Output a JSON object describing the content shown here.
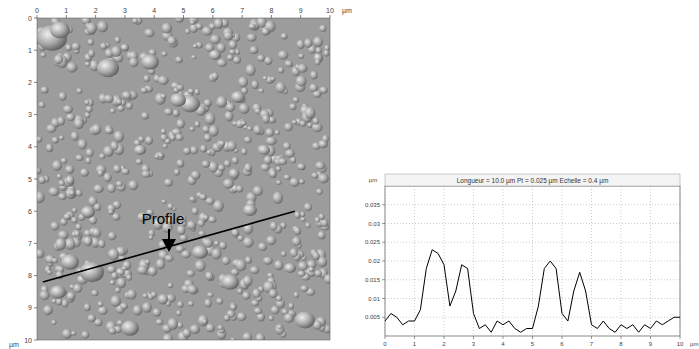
{
  "chart_data": [
    {
      "type": "image",
      "x_label": "µm",
      "y_label": "µm",
      "xlim": [
        0,
        10
      ],
      "ylim": [
        0,
        10
      ],
      "xticks": [
        0,
        1,
        2,
        3,
        4,
        5,
        6,
        7,
        8,
        9,
        10
      ],
      "yticks": [
        0,
        1,
        2,
        3,
        4,
        5,
        6,
        7,
        8,
        9,
        10
      ],
      "profile_line": {
        "x": [
          0.2,
          8.8
        ],
        "y": [
          8.2,
          6.0
        ]
      },
      "annotations": [
        {
          "text": "Profile",
          "x": 4.3,
          "y": 6.4
        }
      ]
    },
    {
      "type": "line",
      "title": "Longueur = 10.0 µm  Pt = 0.025 µm  Echelle = 0.4 µm",
      "y_label": "µm",
      "x_label": "µm",
      "xlim": [
        0,
        10
      ],
      "ylim": [
        0,
        0.04
      ],
      "xticks": [
        0,
        1,
        2,
        3,
        4,
        5,
        6,
        7,
        8,
        9,
        10
      ],
      "yticks": [
        0.005,
        0.01,
        0.015,
        0.02,
        0.025,
        0.03,
        0.035
      ],
      "grid": true,
      "color": "#000000",
      "x": [
        0,
        0.2,
        0.4,
        0.6,
        0.8,
        1.0,
        1.2,
        1.4,
        1.6,
        1.8,
        2.0,
        2.2,
        2.4,
        2.6,
        2.8,
        3.0,
        3.2,
        3.4,
        3.6,
        3.8,
        4.0,
        4.2,
        4.4,
        4.6,
        4.8,
        5.0,
        5.2,
        5.4,
        5.6,
        5.8,
        6.0,
        6.2,
        6.4,
        6.6,
        6.8,
        7.0,
        7.2,
        7.4,
        7.6,
        7.8,
        8.0,
        8.2,
        8.4,
        8.6,
        8.8,
        9.0,
        9.2,
        9.4,
        9.6,
        9.8,
        10.0
      ],
      "values": [
        0.004,
        0.006,
        0.005,
        0.003,
        0.004,
        0.004,
        0.007,
        0.018,
        0.023,
        0.022,
        0.019,
        0.008,
        0.012,
        0.019,
        0.018,
        0.006,
        0.002,
        0.003,
        0.001,
        0.004,
        0.003,
        0.004,
        0.002,
        0.001,
        0.002,
        0.002,
        0.008,
        0.018,
        0.02,
        0.018,
        0.006,
        0.004,
        0.012,
        0.017,
        0.012,
        0.003,
        0.002,
        0.004,
        0.002,
        0.001,
        0.003,
        0.002,
        0.003,
        0.001,
        0.003,
        0.002,
        0.004,
        0.003,
        0.004,
        0.005,
        0.005
      ]
    }
  ]
}
